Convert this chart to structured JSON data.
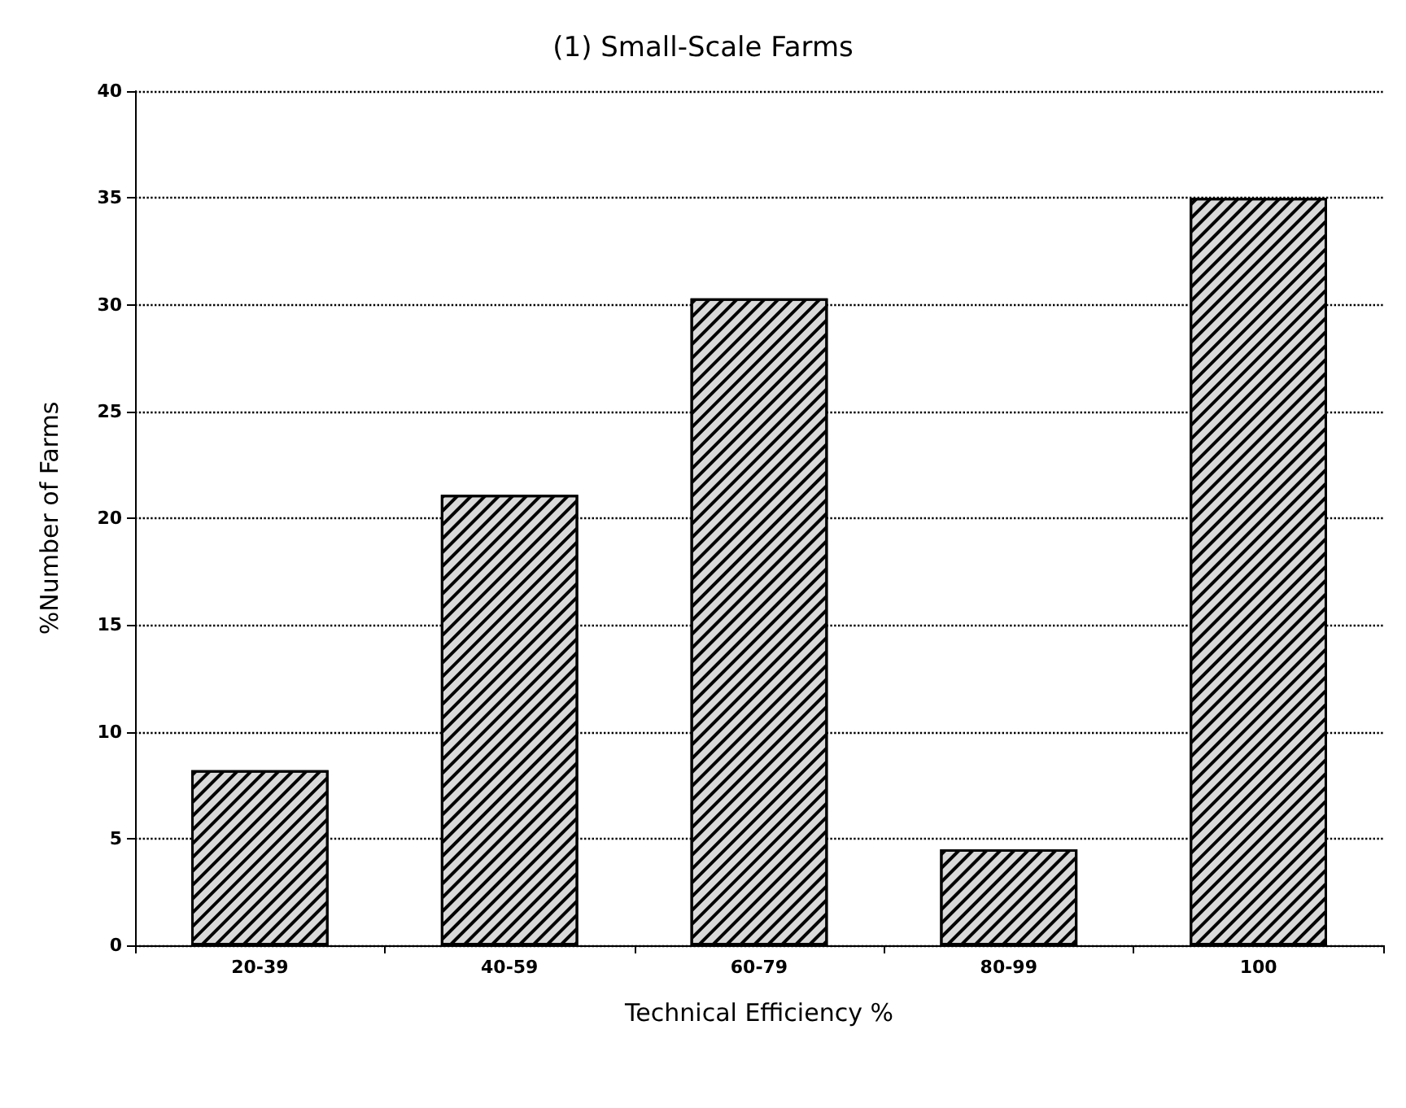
{
  "chart_data": {
    "type": "bar",
    "title": "(1) Small-Scale Farms",
    "xlabel": "Technical Efficiency %",
    "ylabel": "%Number of Farms",
    "categories": [
      "20-39",
      "40-59",
      "60-79",
      "80-99",
      "100"
    ],
    "values": [
      8.2,
      21.1,
      30.3,
      4.5,
      35
    ],
    "color": "#d9d9d9",
    "ylim": [
      0,
      40
    ],
    "yticks": [
      0,
      5,
      10,
      15,
      20,
      25,
      30,
      35,
      40
    ],
    "grid": "y"
  }
}
